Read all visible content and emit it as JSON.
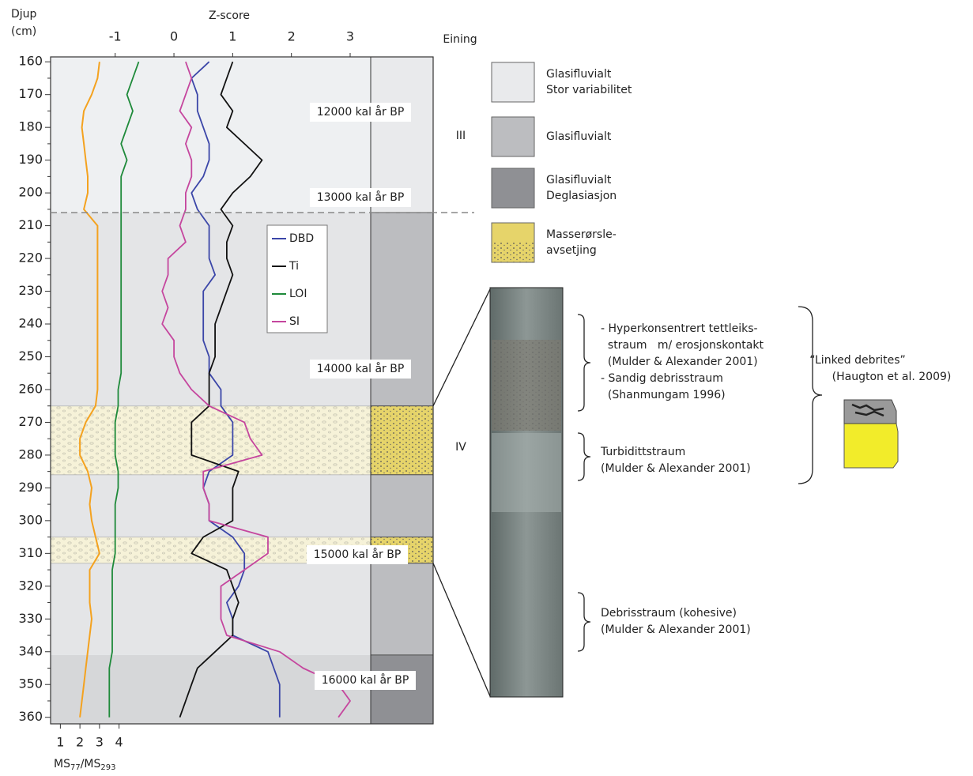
{
  "chart_data": {
    "type": "line",
    "y_label": [
      "Djup",
      "(cm)"
    ],
    "x_label": "Z-score",
    "unit_column_label": "Eining",
    "ylim": [
      158.5,
      362
    ],
    "yticks": [
      160,
      170,
      180,
      190,
      200,
      210,
      220,
      230,
      240,
      250,
      260,
      270,
      280,
      290,
      300,
      310,
      320,
      330,
      340,
      350,
      360
    ],
    "minor_yticks": [
      165,
      175,
      185,
      195,
      205,
      215,
      225,
      235,
      245,
      255,
      265,
      275,
      285,
      295,
      305,
      315,
      325,
      335,
      345,
      355
    ],
    "xlim": [
      -2.1,
      3.35
    ],
    "xticks": [
      -1,
      0,
      1,
      2,
      3
    ],
    "ms_xlim": [
      0.5,
      4.5
    ],
    "ms_xticks": [
      1,
      2,
      3,
      4
    ],
    "ms_label": {
      "base1": "MS",
      "sub1": "77",
      "base2": "/MS",
      "sub2": "293"
    },
    "ms_color": "#f4a21f",
    "depth": [
      160,
      165,
      170,
      175,
      180,
      185,
      190,
      195,
      200,
      205,
      210,
      215,
      220,
      225,
      230,
      235,
      240,
      245,
      250,
      255,
      260,
      265,
      270,
      275,
      280,
      285,
      290,
      295,
      300,
      305,
      310,
      315,
      320,
      325,
      330,
      335,
      340,
      345,
      350,
      355,
      360
    ],
    "ms_values": [
      3.0,
      2.9,
      2.6,
      2.2,
      2.1,
      2.2,
      2.3,
      2.4,
      2.4,
      2.2,
      2.9,
      2.9,
      2.9,
      2.9,
      2.9,
      2.9,
      2.9,
      2.9,
      2.9,
      2.9,
      2.9,
      2.8,
      2.3,
      2.0,
      2.0,
      2.4,
      2.6,
      2.5,
      2.6,
      2.8,
      3.0,
      2.5,
      2.5,
      2.5,
      2.6,
      2.5,
      2.4,
      2.3,
      2.2,
      2.1,
      2.0
    ],
    "series": [
      {
        "name": "DBD",
        "color": "#3b46a8",
        "values": [
          0.6,
          0.3,
          0.4,
          0.4,
          0.5,
          0.6,
          0.6,
          0.5,
          0.3,
          0.4,
          0.6,
          0.6,
          0.6,
          0.7,
          0.5,
          0.5,
          0.5,
          0.5,
          0.6,
          0.6,
          0.8,
          0.8,
          1.0,
          1.0,
          1.0,
          0.6,
          0.5,
          0.6,
          0.6,
          1.0,
          1.2,
          1.2,
          1.1,
          0.9,
          1.0,
          1.0,
          1.6,
          1.7,
          1.8,
          1.8,
          1.8
        ]
      },
      {
        "name": "Ti",
        "color": "#111111",
        "values": [
          1.0,
          0.9,
          0.8,
          1.0,
          0.9,
          1.2,
          1.5,
          1.3,
          1.0,
          0.8,
          1.0,
          0.9,
          0.9,
          1.0,
          0.9,
          0.8,
          0.7,
          0.7,
          0.7,
          0.6,
          0.6,
          0.6,
          0.3,
          0.3,
          0.3,
          1.1,
          1.0,
          1.0,
          1.0,
          0.5,
          0.3,
          0.9,
          1.0,
          1.1,
          1.0,
          1.0,
          0.7,
          0.4,
          0.3,
          0.2,
          0.1
        ]
      },
      {
        "name": "LOI",
        "color": "#1e8a3a",
        "values": [
          -0.6,
          -0.7,
          -0.8,
          -0.7,
          -0.8,
          -0.9,
          -0.8,
          -0.9,
          -0.9,
          -0.9,
          -0.9,
          -0.9,
          -0.9,
          -0.9,
          -0.9,
          -0.9,
          -0.9,
          -0.9,
          -0.9,
          -0.9,
          -0.95,
          -0.95,
          -1.0,
          -1.0,
          -1.0,
          -0.95,
          -0.95,
          -1.0,
          -1.0,
          -1.0,
          -1.0,
          -1.05,
          -1.05,
          -1.05,
          -1.05,
          -1.05,
          -1.05,
          -1.1,
          -1.1,
          -1.1,
          -1.1
        ]
      },
      {
        "name": "SI",
        "color": "#c5469e",
        "values": [
          0.2,
          0.3,
          0.2,
          0.1,
          0.3,
          0.2,
          0.3,
          0.3,
          0.2,
          0.2,
          0.1,
          0.2,
          -0.1,
          -0.1,
          -0.2,
          -0.1,
          -0.2,
          0.0,
          0.0,
          0.1,
          0.3,
          0.6,
          1.2,
          1.3,
          1.5,
          0.5,
          0.5,
          0.6,
          0.6,
          1.6,
          1.6,
          1.2,
          0.8,
          0.8,
          0.8,
          0.9,
          1.8,
          2.2,
          2.8,
          3.0,
          2.8
        ]
      }
    ],
    "zones": [
      {
        "from": 158.5,
        "to": 206,
        "color": "#eef0f2"
      },
      {
        "from": 206,
        "to": 341,
        "color": "#e4e5e7"
      },
      {
        "from": 341,
        "to": 362,
        "color": "#d6d7d9"
      }
    ],
    "sand_layers": [
      {
        "from": 265,
        "to": 286
      },
      {
        "from": 305,
        "to": 313
      }
    ],
    "boundary_depth": 206,
    "unit_column": [
      {
        "from": 158.5,
        "to": 206,
        "color": "#e9eaec"
      },
      {
        "from": 206,
        "to": 265,
        "color": "#bcbdc0"
      },
      {
        "from": 265,
        "to": 286,
        "color": "#e6d46a"
      },
      {
        "from": 286,
        "to": 305,
        "color": "#bcbdc0"
      },
      {
        "from": 305,
        "to": 313,
        "color": "#e6d46a"
      },
      {
        "from": 313,
        "to": 341,
        "color": "#bcbdc0"
      },
      {
        "from": 341,
        "to": 362,
        "color": "#8f9094"
      }
    ],
    "age_labels": [
      "12000 kal år BP",
      "13000 kal år BP",
      "14000 kal år BP",
      "15000 kal år BP",
      "16000 kal år BP"
    ],
    "unit_labels": [
      "III",
      "IV"
    ],
    "core_photo_depths": [
      265,
      313
    ]
  },
  "unit_legend": [
    {
      "lines": [
        "Glasifluvialt",
        "Stor variabilitet"
      ],
      "color": "#e9eaec"
    },
    {
      "lines": [
        "Glasifluvialt"
      ],
      "color": "#bcbdc0"
    },
    {
      "lines": [
        "Glasifluvialt",
        "Deglasiasjon"
      ],
      "color": "#8f9094"
    },
    {
      "lines": [
        "Masserørsle-",
        "avsetjing"
      ],
      "color": "#e6d46a"
    }
  ],
  "core_notes": [
    {
      "lines": [
        "- Hyperkonsentrert tettleiks-",
        "  straum   m/ erosjonskontakt",
        "  (Mulder & Alexander 2001)",
        "- Sandig debrisstraum",
        "  (Shanmungam 1996)"
      ]
    },
    {
      "lines": [
        "Turbidittstraum",
        "(Mulder & Alexander 2001)"
      ]
    },
    {
      "lines": [
        "Debrisstraum (kohesive)",
        "(Mulder & Alexander 2001)"
      ]
    }
  ],
  "linked_debrites": {
    "title": "“Linked debrites”",
    "source": "(Haugton et al. 2009)"
  }
}
